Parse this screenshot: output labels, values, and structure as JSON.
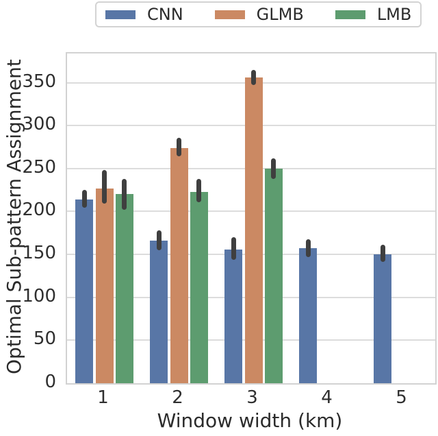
{
  "legend": {
    "items": [
      {
        "label": "CNN",
        "color": "#5876a6"
      },
      {
        "label": "GLMB",
        "color": "#cb8963"
      },
      {
        "label": "LMB",
        "color": "#5d9c6f"
      }
    ]
  },
  "colors": {
    "cnn": "#5876a6",
    "glmb": "#cb8963",
    "lmb": "#5d9c6f",
    "error_bar": "#3f3f3f",
    "grid": "#dcdcdc",
    "spine": "#d2d2d2",
    "text": "#2b2b2b"
  },
  "chart_data": {
    "type": "bar",
    "title": "",
    "xlabel": "Window width (km)",
    "ylabel": "Optimal Sub-pattern Assignment",
    "categories": [
      "1",
      "2",
      "3",
      "4",
      "5"
    ],
    "series": [
      {
        "name": "CNN",
        "color": "#5876a6",
        "values": [
          214,
          166,
          156,
          157,
          150
        ],
        "error_low": [
          204,
          155,
          144,
          147,
          141
        ],
        "error_high": [
          225,
          178,
          170,
          168,
          161
        ]
      },
      {
        "name": "GLMB",
        "color": "#cb8963",
        "values": [
          227,
          274,
          356,
          null,
          null
        ],
        "error_low": [
          209,
          264,
          347,
          null,
          null
        ],
        "error_high": [
          248,
          286,
          365,
          null,
          null
        ]
      },
      {
        "name": "LMB",
        "color": "#5d9c6f",
        "values": [
          220,
          223,
          250,
          null,
          null
        ],
        "error_low": [
          202,
          211,
          238,
          null,
          null
        ],
        "error_high": [
          238,
          238,
          262,
          null,
          null
        ]
      }
    ],
    "yticks": [
      0,
      50,
      100,
      150,
      200,
      250,
      300,
      350
    ],
    "ylim": [
      0,
      384
    ],
    "grid": true,
    "legend_position": "top-center",
    "error_bars": true
  }
}
